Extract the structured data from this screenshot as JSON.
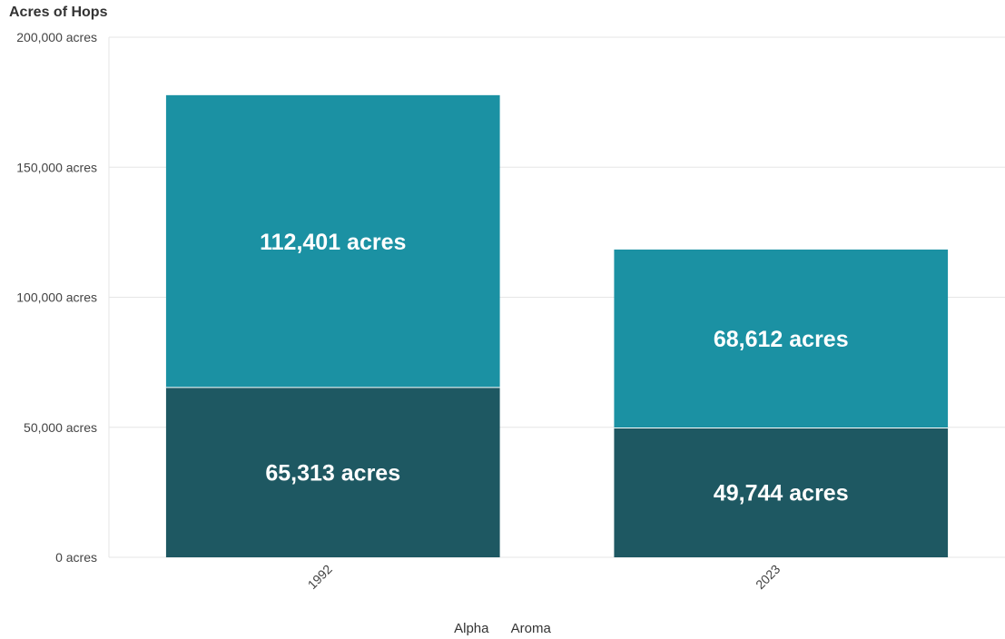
{
  "chart_data": {
    "type": "bar",
    "stacked": true,
    "title": "Acres of Hops",
    "categories": [
      "1992",
      "2023"
    ],
    "series": [
      {
        "name": "Alpha",
        "values": [
          65313,
          49744
        ],
        "color": "#1e5862"
      },
      {
        "name": "Aroma",
        "values": [
          112401,
          68612
        ],
        "color": "#1b91a3"
      }
    ],
    "data_labels": [
      [
        "65,313 acres",
        "49,744 acres"
      ],
      [
        "112,401 acres",
        "68,612 acres"
      ]
    ],
    "yticks": [
      0,
      50000,
      100000,
      150000,
      200000
    ],
    "ytick_labels": [
      "0 acres",
      "50,000 acres",
      "100,000 acres",
      "150,000 acres",
      "200,000 acres"
    ],
    "ylim": [
      0,
      200000
    ],
    "grid": true,
    "legend": {
      "position": "bottom",
      "entries": [
        "Alpha",
        "Aroma"
      ]
    }
  }
}
